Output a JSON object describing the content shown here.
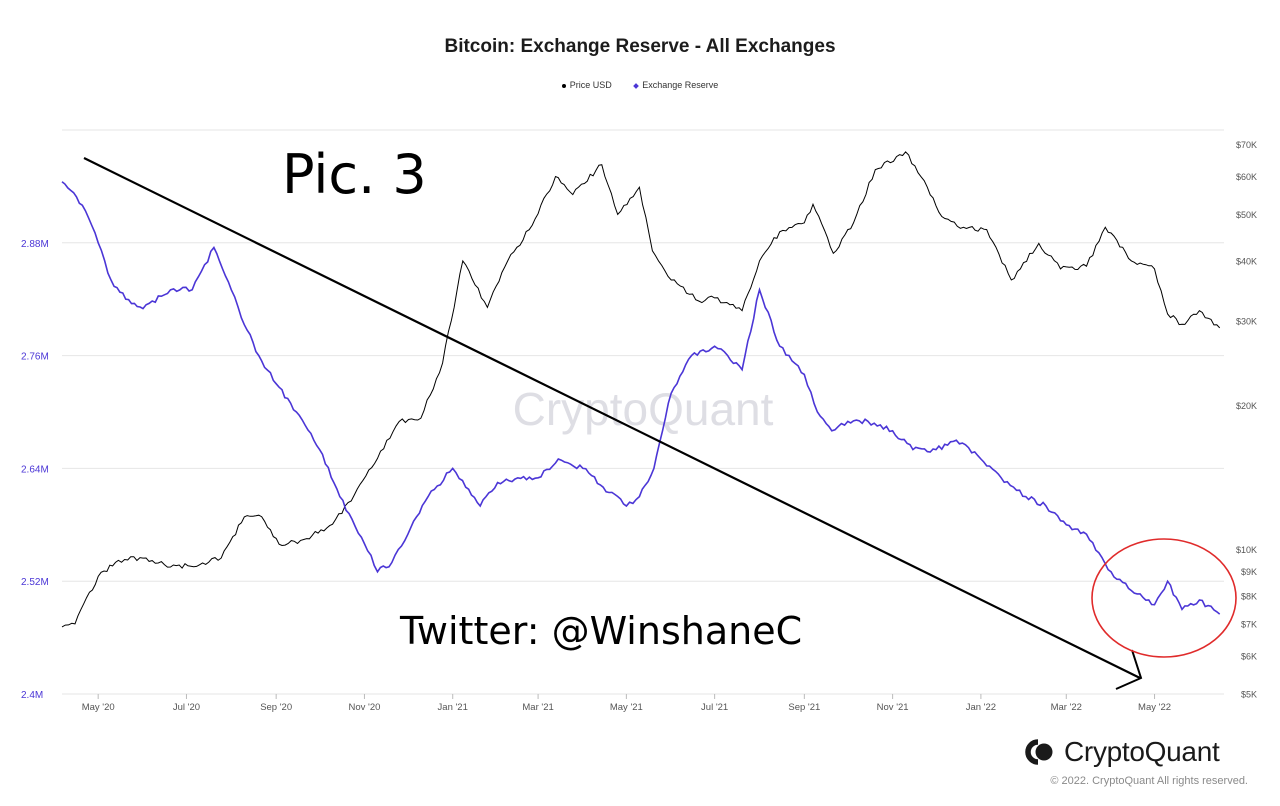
{
  "chart_data": {
    "type": "line",
    "title": "Bitcoin: Exchange Reserve - All Exchanges",
    "legend": [
      {
        "name": "Price USD",
        "color": "#000000",
        "marker": "dot"
      },
      {
        "name": "Exchange Reserve",
        "color": "#4b36d6",
        "marker": "diamond"
      }
    ],
    "legend_position": "top-center",
    "x_tick_labels": [
      "May '20",
      "Jul '20",
      "Sep '20",
      "Nov '20",
      "Jan '21",
      "Mar '21",
      "May '21",
      "Jul '21",
      "Sep '21",
      "Nov '21",
      "Jan '22",
      "Mar '22",
      "May '22"
    ],
    "x_range": [
      "2020-04-06",
      "2022-06-18"
    ],
    "y_left": {
      "scale": "linear",
      "ylim": [
        2400000,
        3000000
      ],
      "tick_values": [
        2400000,
        2520000,
        2640000,
        2760000,
        2880000
      ],
      "tick_labels": [
        "2.4M",
        "2.52M",
        "2.64M",
        "2.76M",
        "2.88M"
      ],
      "color": "#4b36d6"
    },
    "y_right": {
      "scale": "log",
      "ylim": [
        5000,
        75000
      ],
      "tick_values": [
        5000,
        6000,
        7000,
        8000,
        9000,
        10000,
        20000,
        30000,
        40000,
        50000,
        60000,
        70000
      ],
      "tick_labels": [
        "$5K",
        "$6K",
        "$7K",
        "$8K",
        "$9K",
        "$10K",
        "$20K",
        "$30K",
        "$40K",
        "$50K",
        "$60K",
        "$70K"
      ]
    },
    "grid": "horizontal",
    "watermark": "CryptoQuant",
    "series": [
      {
        "name": "Exchange Reserve",
        "axis": "left",
        "color": "#4b36d6",
        "x": [
          "2020-04-06",
          "2020-04-20",
          "2020-05-01",
          "2020-05-10",
          "2020-05-20",
          "2020-06-01",
          "2020-06-20",
          "2020-07-05",
          "2020-07-20",
          "2020-08-01",
          "2020-08-08",
          "2020-08-20",
          "2020-09-01",
          "2020-09-15",
          "2020-10-01",
          "2020-10-15",
          "2020-11-01",
          "2020-11-10",
          "2020-11-20",
          "2020-12-01",
          "2020-12-15",
          "2021-01-01",
          "2021-01-10",
          "2021-01-20",
          "2021-02-01",
          "2021-02-15",
          "2021-03-01",
          "2021-03-15",
          "2021-04-01",
          "2021-04-15",
          "2021-05-01",
          "2021-05-10",
          "2021-05-20",
          "2021-06-01",
          "2021-06-15",
          "2021-07-01",
          "2021-07-10",
          "2021-07-20",
          "2021-08-01",
          "2021-08-15",
          "2021-09-01",
          "2021-09-10",
          "2021-09-20",
          "2021-10-01",
          "2021-10-15",
          "2021-11-01",
          "2021-11-15",
          "2021-12-01",
          "2021-12-15",
          "2022-01-01",
          "2022-01-15",
          "2022-02-01",
          "2022-02-15",
          "2022-03-01",
          "2022-03-15",
          "2022-04-01",
          "2022-04-15",
          "2022-05-01",
          "2022-05-10",
          "2022-05-20",
          "2022-06-01",
          "2022-06-15"
        ],
        "y": [
          2945000,
          2920000,
          2880000,
          2840000,
          2820000,
          2810000,
          2830000,
          2830000,
          2875000,
          2830000,
          2800000,
          2760000,
          2730000,
          2700000,
          2660000,
          2610000,
          2560000,
          2530000,
          2540000,
          2570000,
          2610000,
          2640000,
          2620000,
          2600000,
          2625000,
          2630000,
          2630000,
          2650000,
          2640000,
          2620000,
          2600000,
          2610000,
          2640000,
          2720000,
          2760000,
          2770000,
          2760000,
          2745000,
          2830000,
          2770000,
          2740000,
          2700000,
          2680000,
          2690000,
          2690000,
          2680000,
          2660000,
          2660000,
          2670000,
          2650000,
          2630000,
          2610000,
          2600000,
          2580000,
          2570000,
          2530000,
          2510000,
          2495000,
          2520000,
          2490000,
          2500000,
          2485000
        ]
      },
      {
        "name": "Price USD",
        "axis": "right",
        "color": "#000000",
        "x": [
          "2020-04-06",
          "2020-04-15",
          "2020-05-01",
          "2020-05-15",
          "2020-06-01",
          "2020-06-20",
          "2020-07-10",
          "2020-07-25",
          "2020-08-10",
          "2020-08-20",
          "2020-09-05",
          "2020-09-20",
          "2020-10-10",
          "2020-10-25",
          "2020-11-10",
          "2020-11-25",
          "2020-12-10",
          "2020-12-25",
          "2021-01-08",
          "2021-01-25",
          "2021-02-08",
          "2021-02-25",
          "2021-03-13",
          "2021-03-25",
          "2021-04-14",
          "2021-04-25",
          "2021-05-10",
          "2021-05-19",
          "2021-06-01",
          "2021-06-20",
          "2021-07-01",
          "2021-07-20",
          "2021-08-01",
          "2021-08-15",
          "2021-09-01",
          "2021-09-07",
          "2021-09-21",
          "2021-10-05",
          "2021-10-20",
          "2021-11-10",
          "2021-11-25",
          "2021-12-05",
          "2021-12-20",
          "2022-01-05",
          "2022-01-22",
          "2022-02-10",
          "2022-02-25",
          "2022-03-15",
          "2022-03-28",
          "2022-04-15",
          "2022-05-01",
          "2022-05-10",
          "2022-05-20",
          "2022-06-01",
          "2022-06-15"
        ],
        "y": [
          6900,
          7000,
          8800,
          9500,
          9600,
          9200,
          9300,
          9600,
          11700,
          11800,
          10200,
          10500,
          11300,
          13000,
          15500,
          18500,
          18800,
          24500,
          40000,
          32000,
          40000,
          47500,
          60000,
          55000,
          63500,
          50000,
          57000,
          42000,
          36500,
          33000,
          33500,
          31500,
          40000,
          46000,
          48000,
          52500,
          41500,
          48000,
          62000,
          67500,
          57000,
          49500,
          47000,
          46500,
          36500,
          43500,
          38500,
          39000,
          47000,
          40000,
          38500,
          31000,
          29500,
          31500,
          29000
        ]
      }
    ]
  },
  "annotations": {
    "label_pic": "Pic. 3",
    "label_twitter": "Twitter: @WinshaneC"
  },
  "footer": {
    "logo_text": "CryptoQuant",
    "copyright": "© 2022. CryptoQuant All rights reserved."
  }
}
